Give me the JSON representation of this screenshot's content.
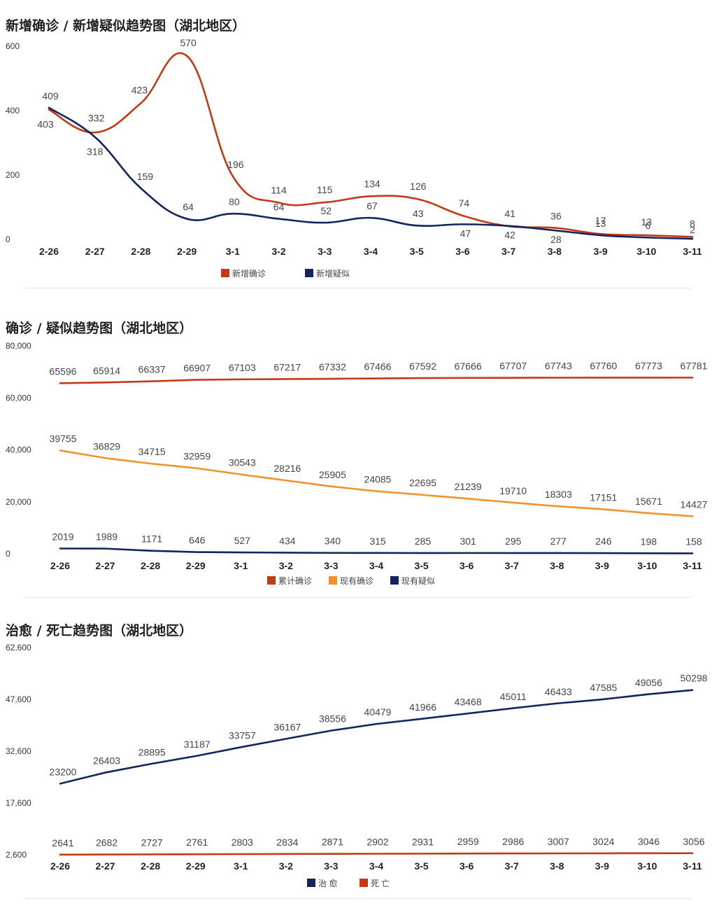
{
  "panels": {
    "p1": {
      "title": "新增确诊 / 新增疑似趋势图（湖北地区）"
    },
    "p2": {
      "title": "确诊 / 疑似趋势图（湖北地区）"
    },
    "p3": {
      "title": "治愈 / 死亡趋势图（湖北地区）"
    }
  },
  "chart_data": [
    {
      "type": "line",
      "title": "新增确诊 / 新增疑似趋势图（湖北地区）",
      "categories": [
        "2-26",
        "2-27",
        "2-28",
        "2-29",
        "3-1",
        "3-2",
        "3-3",
        "3-4",
        "3-5",
        "3-6",
        "3-7",
        "3-8",
        "3-9",
        "3-10",
        "3-11"
      ],
      "ylim": [
        0,
        600
      ],
      "yticks": [
        0,
        200,
        400,
        600
      ],
      "ytick_labels": [
        "0",
        "200",
        "400",
        "600"
      ],
      "smooth": true,
      "legend_position": "bottom-center",
      "series": [
        {
          "name": "新增确诊",
          "color": "#c23a16",
          "values": [
            403,
            332,
            423,
            570,
            196,
            114,
            115,
            134,
            126,
            74,
            41,
            36,
            17,
            13,
            8
          ]
        },
        {
          "name": "新增疑似",
          "color": "#14245e",
          "values": [
            409,
            318,
            159,
            64,
            80,
            64,
            52,
            67,
            43,
            47,
            42,
            28,
            13,
            6,
            2
          ]
        }
      ]
    },
    {
      "type": "line",
      "title": "确诊 / 疑似趋势图（湖北地区）",
      "categories": [
        "2-26",
        "2-27",
        "2-28",
        "2-29",
        "3-1",
        "3-2",
        "3-3",
        "3-4",
        "3-5",
        "3-6",
        "3-7",
        "3-8",
        "3-9",
        "3-10",
        "3-11"
      ],
      "ylim": [
        0,
        80000
      ],
      "yticks": [
        0,
        20000,
        40000,
        60000,
        80000
      ],
      "ytick_labels": [
        "0",
        "20,000",
        "40,000",
        "60,000",
        "80,000"
      ],
      "legend_position": "bottom-center",
      "series": [
        {
          "name": "累计确诊",
          "color": "#c23a16",
          "values": [
            65596,
            65914,
            66337,
            66907,
            67103,
            67217,
            67332,
            67466,
            67592,
            67666,
            67707,
            67743,
            67760,
            67773,
            67781
          ]
        },
        {
          "name": "现有确诊",
          "color": "#f0922e",
          "values": [
            39755,
            36829,
            34715,
            32959,
            30543,
            28216,
            25905,
            24085,
            22695,
            21239,
            19710,
            18303,
            17151,
            15671,
            14427
          ]
        },
        {
          "name": "现有疑似",
          "color": "#14245e",
          "values": [
            2019,
            1989,
            1171,
            646,
            527,
            434,
            340,
            315,
            285,
            301,
            295,
            277,
            246,
            198,
            158
          ]
        }
      ]
    },
    {
      "type": "line",
      "title": "治愈 / 死亡趋势图（湖北地区）",
      "categories": [
        "2-26",
        "2-27",
        "2-28",
        "2-29",
        "3-1",
        "3-2",
        "3-3",
        "3-4",
        "3-5",
        "3-6",
        "3-7",
        "3-8",
        "3-9",
        "3-10",
        "3-11"
      ],
      "ylim": [
        2600,
        62600
      ],
      "yticks": [
        2600,
        17600,
        32600,
        47600,
        62600
      ],
      "ytick_labels": [
        "2,600",
        "17,600",
        "32,600",
        "47,600",
        "62,600"
      ],
      "legend_position": "bottom-center",
      "series": [
        {
          "name": "治 愈",
          "color": "#14245e",
          "values": [
            23200,
            26403,
            28895,
            31187,
            33757,
            36167,
            38556,
            40479,
            41966,
            43468,
            45011,
            46433,
            47585,
            49056,
            50298
          ]
        },
        {
          "name": "死 亡",
          "color": "#c23a16",
          "values": [
            2641,
            2682,
            2727,
            2761,
            2803,
            2834,
            2871,
            2902,
            2931,
            2959,
            2986,
            3007,
            3024,
            3046,
            3056
          ]
        }
      ]
    }
  ]
}
